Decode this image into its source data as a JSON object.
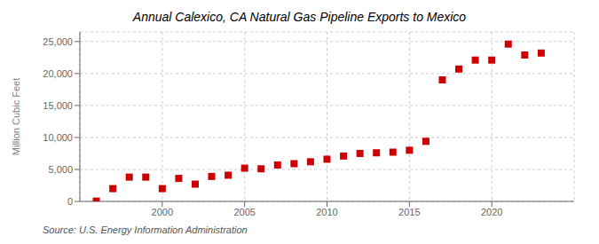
{
  "chart_data": {
    "type": "scatter",
    "title": "Annual Calexico, CA Natural Gas Pipeline Exports to Mexico",
    "y_label": "Million Cubic Feet",
    "annotations": [
      "Source: U.S. Energy Information Administration"
    ],
    "x": [
      1996,
      1997,
      1998,
      1999,
      2000,
      2001,
      2002,
      2003,
      2004,
      2005,
      2006,
      2007,
      2008,
      2009,
      2010,
      2011,
      2012,
      2013,
      2014,
      2015,
      2016,
      2017,
      2018,
      2019,
      2020,
      2021,
      2022,
      2023
    ],
    "values": [
      50,
      2000,
      3800,
      3800,
      2000,
      3600,
      2700,
      3900,
      4100,
      5200,
      5100,
      5700,
      5900,
      6200,
      6600,
      7100,
      7500,
      7600,
      7700,
      8000,
      9400,
      19000,
      20700,
      22100,
      22100,
      24600,
      22900,
      23200
    ],
    "color": "#cc0000",
    "marker": "square",
    "xlim": [
      1995,
      2025
    ],
    "xticks": [
      2000,
      2005,
      2010,
      2015,
      2020
    ],
    "ylim": [
      0,
      26500
    ],
    "yticks": [
      0,
      {
        "value": 5000,
        "label": "5,000"
      },
      {
        "value": 10000,
        "label": "10,000"
      },
      {
        "value": 15000,
        "label": "15,000"
      },
      {
        "value": 20000,
        "label": "20,000"
      },
      {
        "value": 25000,
        "label": "25,000"
      }
    ],
    "grid": true
  }
}
